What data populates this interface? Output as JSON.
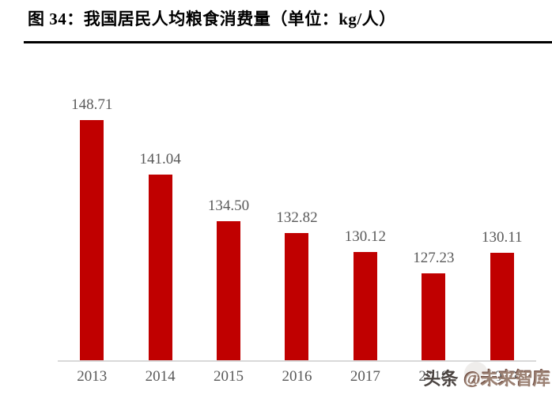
{
  "header": {
    "title": "图 34：我国居民人均粮食消费量（单位：kg/人）"
  },
  "chart_data": {
    "type": "bar",
    "title": "我国居民人均粮食消费量",
    "unit": "kg/人",
    "categories": [
      "2013",
      "2014",
      "2015",
      "2016",
      "2017",
      "2018",
      "2019"
    ],
    "values": [
      148.71,
      141.04,
      134.5,
      132.82,
      130.12,
      127.23,
      130.11
    ],
    "value_labels": [
      "148.71",
      "141.04",
      "134.50",
      "132.82",
      "130.12",
      "127.23",
      "130.11"
    ],
    "ylim": [
      115,
      150
    ],
    "xlabel": "",
    "ylabel": "",
    "grid": false,
    "legend": "none",
    "bar_color": "#c00000",
    "label_color": "#595959",
    "baseline_color": "#d9d9d9"
  },
  "watermark": {
    "source": "头条",
    "handle": "@未来智库"
  }
}
